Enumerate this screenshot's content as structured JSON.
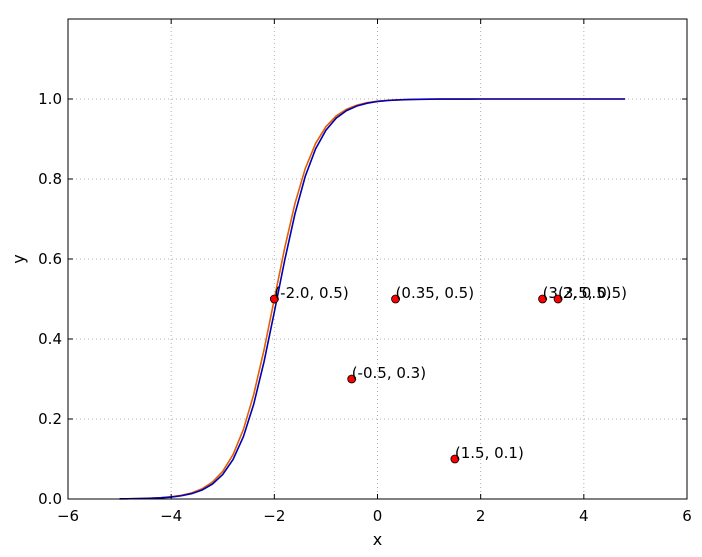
{
  "chart_data": {
    "type": "line",
    "title": "",
    "xlabel": "x",
    "ylabel": "y",
    "xlim": [
      -6,
      6
    ],
    "ylim": [
      0,
      1.2
    ],
    "xticks": [
      -6,
      -4,
      -2,
      0,
      2,
      4,
      6
    ],
    "xtick_labels": [
      "−6",
      "−4",
      "−2",
      "0",
      "2",
      "4",
      "6"
    ],
    "yticks": [
      0,
      0.2,
      0.4,
      0.6,
      0.8,
      1.0
    ],
    "ytick_labels": [
      "0.0",
      "0.2",
      "0.4",
      "0.6",
      "0.8",
      "1.0"
    ],
    "grid": true,
    "grid_style": "dotted",
    "x_range": [
      -5,
      4.8
    ],
    "x_step": 0.2,
    "series": [
      {
        "kind": "line",
        "color": "#e55e00",
        "function": "logistic",
        "k": 2.6,
        "x0": -2.0
      },
      {
        "kind": "line",
        "color": "#0000b4",
        "function": "logistic",
        "k": 2.6,
        "x0": -1.95
      }
    ],
    "points": [
      {
        "x": -2.0,
        "y": 0.5,
        "label": "(-2.0, 0.5)"
      },
      {
        "x": 0.35,
        "y": 0.5,
        "label": "(0.35, 0.5)"
      },
      {
        "x": -0.5,
        "y": 0.3,
        "label": "(-0.5, 0.3)"
      },
      {
        "x": 1.5,
        "y": 0.1,
        "label": "(1.5, 0.1)"
      },
      {
        "x": 3.2,
        "y": 0.5,
        "label": "(3.2, 0.5)"
      },
      {
        "x": 3.5,
        "y": 0.5,
        "label": "(3.5, 0.5)"
      }
    ],
    "point_color": "#ff0000"
  }
}
